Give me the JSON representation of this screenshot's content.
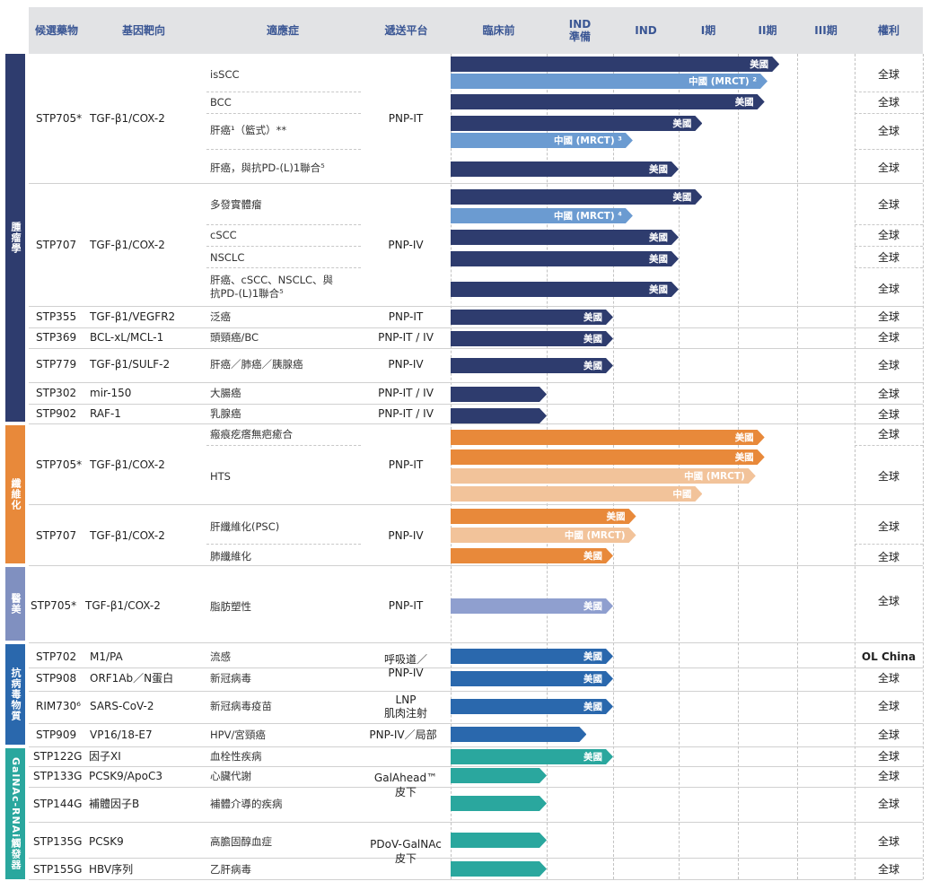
{
  "headers": {
    "drug": "候選藥物",
    "target": "基因靶向",
    "indication": "適應症",
    "platform": "遞送平台",
    "preclinical": "臨床前",
    "ind_prep_1": "IND",
    "ind_prep_2": "準備",
    "ind": "IND",
    "phase1": "I期",
    "phase2": "II期",
    "phase3": "III期",
    "rights": "權利"
  },
  "categories": {
    "oncology": "腫瘤學",
    "fibrosis": "纖維化",
    "aesthetics": "醫美",
    "antiviral": "抗病毒物質",
    "galnac": "GalNAc-RNAi觸發器"
  },
  "drugs": {
    "d1": "STP705*",
    "t1": "TGF-β1/COX-2",
    "d2": "STP707",
    "t2": "TGF-β1/COX-2",
    "d3": "STP355",
    "t3": "TGF-β1/VEGFR2",
    "d4": "STP369",
    "t4": "BCL-xL/MCL-1",
    "d5": "STP779",
    "t5": "TGF-β1/SULF-2",
    "d6": "STP302",
    "t6": "mir-150",
    "d7": "STP902",
    "t7": "RAF-1",
    "d8": "STP705*",
    "t8": "TGF-β1/COX-2",
    "d9": "STP707",
    "t9": "TGF-β1/COX-2",
    "d10": "STP705*",
    "t10": "TGF-β1/COX-2",
    "d11": "STP702",
    "t11": "M1/PA",
    "d12": "STP908",
    "t12": "ORF1Ab／N蛋白",
    "d13": "RIM730⁶",
    "t13": "SARS-CoV-2",
    "d14": "STP909",
    "t14": "VP16/18-E7",
    "d15": "STP122G",
    "t15": "因子XI",
    "d16": "STP133G",
    "t16": "PCSK9/ApoC3",
    "d17": "STP144G",
    "t17": "補體因子B",
    "d18": "STP135G",
    "t18": "PCSK9",
    "d19": "STP155G",
    "t19": "HBV序列"
  },
  "indications": {
    "i1": "isSCC",
    "i2": "BCC",
    "i3": "肝癌¹（籃式）**",
    "i4": "肝癌，與抗PD-(L)1聯合⁵",
    "i5": "多發實體瘤",
    "i6": "cSCC",
    "i7": "NSCLC",
    "i8a": "肝癌、cSCC、NSCLC、與",
    "i8b": "抗PD-(L)1聯合⁵",
    "i9": "泛癌",
    "i10": "頭頸癌/BC",
    "i11": "肝癌／肺癌／胰腺癌",
    "i12": "大腸癌",
    "i13": "乳腺癌",
    "i14": "瘢痕疙瘩無疤癒合",
    "i15": "HTS",
    "i16": "肝纖維化(PSC)",
    "i17": "肺纖維化",
    "i18": "脂肪塑性",
    "i19": "流感",
    "i20": "新冠病毒",
    "i21": "新冠病毒疫苗",
    "i22": "HPV/宮頸癌",
    "i23": "血栓性疾病",
    "i24": "心臟代謝",
    "i25": "補體介導的疾病",
    "i26": "高膽固醇血症",
    "i27": "乙肝病毒"
  },
  "platforms": {
    "p1": "PNP-IT",
    "p2": "PNP-IV",
    "p3": "PNP-IT",
    "p4": "PNP-IT / IV",
    "p5": "PNP-IV",
    "p6": "PNP-IT / IV",
    "p7": "PNP-IT / IV",
    "p8": "PNP-IT",
    "p9": "PNP-IV",
    "p10": "PNP-IT",
    "p11a": "呼吸道／",
    "p11b": "PNP-IV",
    "p12a": "LNP",
    "p12b": "肌肉注射",
    "p13": "PNP-IV／局部",
    "p14a": "GalAhead™",
    "p14b": "皮下",
    "p15a": "PDoV-GalNAc",
    "p15b": "皮下"
  },
  "rights": {
    "global": "全球",
    "ol": "OL China"
  },
  "bar_labels": {
    "us": "美國",
    "cn_mrct2": "中國 (MRCT) ²",
    "cn_mrct3": "中國 (MRCT) ³",
    "cn_mrct4": "中國 (MRCT) ⁴",
    "cn_mrct": "中國 (MRCT)",
    "cn": "中國"
  },
  "colors": {
    "navy": "#2e3c6e",
    "blue_light": "#6b9bd1",
    "orange": "#e8893a",
    "orange_light": "#f2c39a",
    "periwinkle": "#8f9fcf",
    "blue": "#2a68ad",
    "teal": "#2aa79e",
    "header_text": "#3a5694",
    "cat_oncology": "#2e3c6e",
    "cat_fibrosis": "#e8893a",
    "cat_aesthetics": "#8090c0",
    "cat_antiviral": "#2a68ad",
    "cat_galnac": "#2aa79e"
  },
  "chart_data": {
    "type": "table",
    "stages": [
      "臨床前",
      "IND準備",
      "IND",
      "I期",
      "II期",
      "III期"
    ],
    "stage_scale_note_units": "stage index: 0=start of 臨床前, 1=IND準備 start, 2=IND start, 3=I期 start, 4=II期 start, 5=III期 start",
    "rows": [
      {
        "drug": "STP705*",
        "indication": "isSCC",
        "bars": [
          {
            "label": "美國",
            "end": 4.7
          },
          {
            "label": "中國 (MRCT) ²",
            "end": 4.5
          }
        ]
      },
      {
        "drug": "STP705*",
        "indication": "BCC",
        "bars": [
          {
            "label": "美國",
            "end": 4.45
          }
        ]
      },
      {
        "drug": "STP705*",
        "indication": "肝癌¹（籃式）**",
        "bars": [
          {
            "label": "美國",
            "end": 3.4
          },
          {
            "label": "中國 (MRCT) ³",
            "end": 2.3
          }
        ]
      },
      {
        "drug": "STP705*",
        "indication": "肝癌，與抗PD-(L)1聯合⁵",
        "bars": [
          {
            "label": "美國",
            "end": 3.0
          }
        ]
      },
      {
        "drug": "STP707",
        "indication": "多發實體瘤",
        "bars": [
          {
            "label": "美國",
            "end": 3.4
          },
          {
            "label": "中國 (MRCT) ⁴",
            "end": 2.3
          }
        ]
      },
      {
        "drug": "STP707",
        "indication": "cSCC",
        "bars": [
          {
            "label": "美國",
            "end": 3.0
          }
        ]
      },
      {
        "drug": "STP707",
        "indication": "NSCLC",
        "bars": [
          {
            "label": "美國",
            "end": 3.0
          }
        ]
      },
      {
        "drug": "STP707",
        "indication": "肝癌、cSCC、NSCLC、與抗PD-(L)1聯合⁵",
        "bars": [
          {
            "label": "美國",
            "end": 3.0
          }
        ]
      },
      {
        "drug": "STP355",
        "indication": "泛癌",
        "bars": [
          {
            "label": "美國",
            "end": 2.0
          }
        ]
      },
      {
        "drug": "STP369",
        "indication": "頭頸癌/BC",
        "bars": [
          {
            "label": "美國",
            "end": 2.0
          }
        ]
      },
      {
        "drug": "STP779",
        "indication": "肝癌／肺癌／胰腺癌",
        "bars": [
          {
            "label": "美國",
            "end": 2.0
          }
        ]
      },
      {
        "drug": "STP302",
        "indication": "大腸癌",
        "bars": [
          {
            "label": "",
            "end": 1.0
          }
        ]
      },
      {
        "drug": "STP902",
        "indication": "乳腺癌",
        "bars": [
          {
            "label": "",
            "end": 1.0
          }
        ]
      },
      {
        "drug": "STP705*",
        "indication": "瘢痕疙瘩無疤癒合",
        "bars": [
          {
            "label": "美國",
            "end": 4.45
          }
        ]
      },
      {
        "drug": "STP705*",
        "indication": "HTS",
        "bars": [
          {
            "label": "美國",
            "end": 4.45
          },
          {
            "label": "中國 (MRCT)",
            "end": 4.3
          },
          {
            "label": "中國",
            "end": 3.4
          }
        ]
      },
      {
        "drug": "STP707",
        "indication": "肝纖維化(PSC)",
        "bars": [
          {
            "label": "美國",
            "end": 2.35
          },
          {
            "label": "中國 (MRCT)",
            "end": 2.35
          }
        ]
      },
      {
        "drug": "STP707",
        "indication": "肺纖維化",
        "bars": [
          {
            "label": "美國",
            "end": 2.0
          }
        ]
      },
      {
        "drug": "STP705*",
        "indication": "脂肪塑性",
        "bars": [
          {
            "label": "美國",
            "end": 2.0
          }
        ]
      },
      {
        "drug": "STP702",
        "indication": "流感",
        "bars": [
          {
            "label": "美國",
            "end": 2.0
          }
        ]
      },
      {
        "drug": "STP908",
        "indication": "新冠病毒",
        "bars": [
          {
            "label": "美國",
            "end": 2.0
          }
        ]
      },
      {
        "drug": "RIM730⁶",
        "indication": "新冠病毒疫苗",
        "bars": [
          {
            "label": "美國",
            "end": 2.0
          }
        ]
      },
      {
        "drug": "STP909",
        "indication": "HPV/宮頸癌",
        "bars": [
          {
            "label": "",
            "end": 1.6
          }
        ]
      },
      {
        "drug": "STP122G",
        "indication": "血栓性疾病",
        "bars": [
          {
            "label": "美國",
            "end": 2.0
          }
        ]
      },
      {
        "drug": "STP133G",
        "indication": "心臟代謝",
        "bars": [
          {
            "label": "",
            "end": 1.0
          }
        ]
      },
      {
        "drug": "STP144G",
        "indication": "補體介導的疾病",
        "bars": [
          {
            "label": "",
            "end": 1.0
          }
        ]
      },
      {
        "drug": "STP135G",
        "indication": "高膽固醇血症",
        "bars": [
          {
            "label": "",
            "end": 1.0
          }
        ]
      },
      {
        "drug": "STP155G",
        "indication": "乙肝病毒",
        "bars": [
          {
            "label": "",
            "end": 1.0
          }
        ]
      }
    ]
  }
}
